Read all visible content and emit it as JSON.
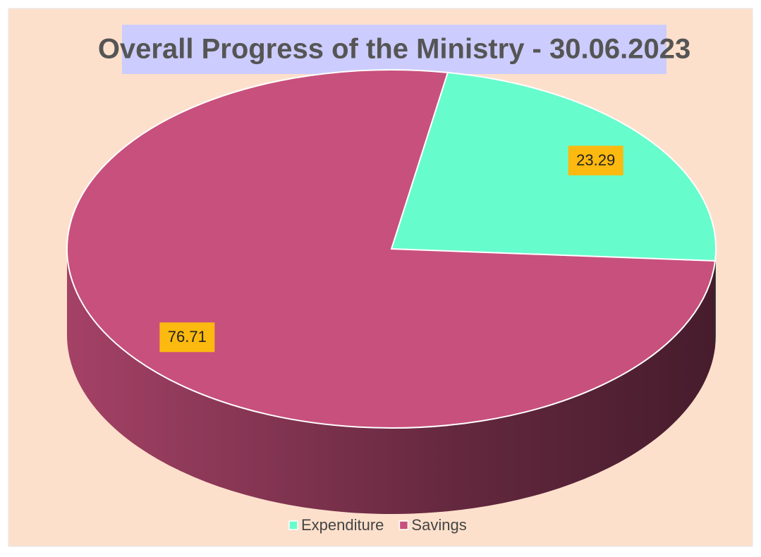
{
  "chart_data": {
    "type": "pie",
    "title": "Overall Progress of the Ministry - 30.06.2023",
    "categories": [
      "Expenditure",
      "Savings"
    ],
    "values": [
      23.29,
      76.71
    ],
    "colors": [
      "#66fccb",
      "#c8507c"
    ],
    "legend": "bottom"
  }
}
